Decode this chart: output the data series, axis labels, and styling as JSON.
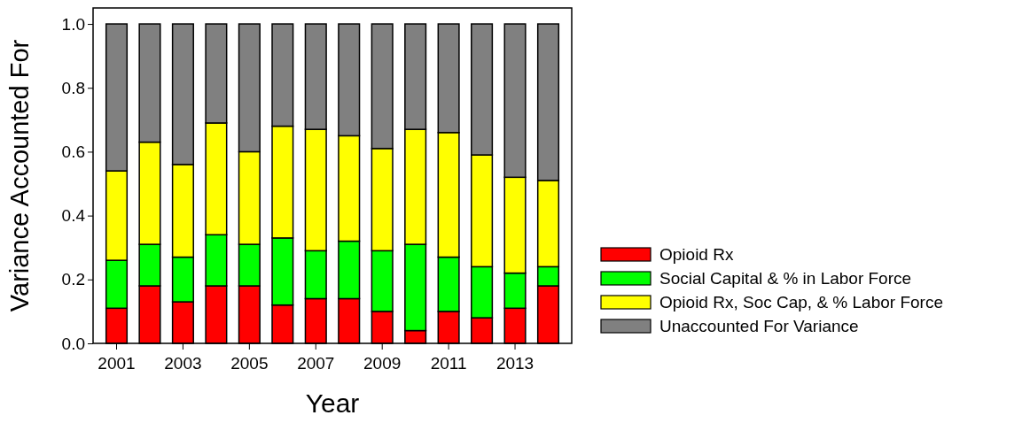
{
  "chart_data": {
    "type": "bar",
    "stacked": true,
    "xlabel": "Year",
    "ylabel": "Variance Accounted For",
    "categories": [
      "2001",
      null,
      "2003",
      null,
      "2005",
      null,
      "2007",
      null,
      "2009",
      null,
      "2011",
      null,
      "2013",
      null
    ],
    "ylim": [
      0,
      1.05
    ],
    "yticks": [
      {
        "value": 0,
        "label": "0.0"
      },
      {
        "value": 0.2,
        "label": "0.2"
      },
      {
        "value": 0.4,
        "label": "0.4"
      },
      {
        "value": 0.6,
        "label": "0.6"
      },
      {
        "value": 0.8,
        "label": "0.8"
      },
      {
        "value": 1,
        "label": "1.0"
      }
    ],
    "legend": "right",
    "grid": false,
    "series": [
      {
        "name": "Opioid Rx",
        "color": "#ff0000",
        "values": [
          0.11,
          0.18,
          0.13,
          0.18,
          0.18,
          0.12,
          0.14,
          0.14,
          0.1,
          0.04,
          0.1,
          0.08,
          0.11,
          0.18
        ]
      },
      {
        "name": "Social Capital & % in Labor Force",
        "color": "#00ff00",
        "values": [
          0.15,
          0.13,
          0.14,
          0.16,
          0.13,
          0.21,
          0.15,
          0.18,
          0.19,
          0.27,
          0.17,
          0.16,
          0.11,
          0.06
        ]
      },
      {
        "name": "Opioid Rx, Soc Cap,  & % Labor Force",
        "color": "#ffff00",
        "values": [
          0.28,
          0.32,
          0.29,
          0.35,
          0.29,
          0.35,
          0.38,
          0.33,
          0.32,
          0.36,
          0.39,
          0.35,
          0.3,
          0.27
        ]
      },
      {
        "name": "Unaccounted For Variance",
        "color": "#808080",
        "values": [
          0.46,
          0.37,
          0.44,
          0.31,
          0.4,
          0.32,
          0.33,
          0.35,
          0.39,
          0.33,
          0.34,
          0.41,
          0.48,
          0.49
        ]
      }
    ]
  }
}
